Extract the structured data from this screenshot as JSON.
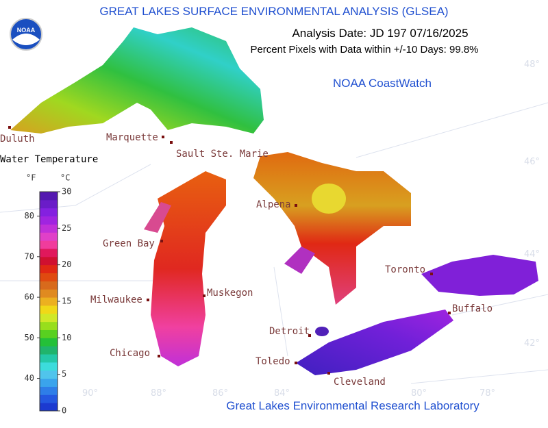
{
  "title": "GREAT LAKES SURFACE ENVIRONMENTAL ANALYSIS (GLSEA)",
  "analysis_date": "Analysis Date:  JD 197 07/16/2025",
  "percent_pixels": "Percent Pixels with Data within +/-10 Days:  99.8%",
  "source": "NOAA CoastWatch",
  "footer": "Great Lakes Environmental Research Laboratory",
  "logo_text": "NOAA",
  "legend": {
    "title": "Water Temperature",
    "f_label": "°F",
    "c_label": "°C",
    "flim": [
      32,
      86
    ],
    "fticks": [
      40,
      50,
      60,
      70,
      80
    ],
    "clim": [
      0,
      30
    ],
    "cticks": [
      0,
      5,
      10,
      15,
      20,
      25,
      30
    ],
    "colors": [
      "#1c3ad0",
      "#2458e0",
      "#2e7ee8",
      "#3aa4ec",
      "#50c4ec",
      "#3cdcdc",
      "#24c8a8",
      "#20b46c",
      "#24c038",
      "#58d020",
      "#98de1c",
      "#d0e828",
      "#f0d818",
      "#ecb020",
      "#e08a20",
      "#d86a1c",
      "#e04a10",
      "#e02814",
      "#d01030",
      "#e0185c",
      "#f03c9c",
      "#e040c8",
      "#c030d8",
      "#a024e0",
      "#8420e0",
      "#6a1cc8",
      "#5418b0"
    ]
  },
  "cities": [
    "Duluth",
    "Marquette",
    "Sault Ste. Marie",
    "Green Bay",
    "Alpena",
    "Milwaukee",
    "Muskegon",
    "Toronto",
    "Buffalo",
    "Detroit",
    "Chicago",
    "Toledo",
    "Cleveland"
  ],
  "latitudes": [
    "48°",
    "46°",
    "44°",
    "42°"
  ],
  "longitudes": [
    "90°",
    "88°",
    "86°",
    "84°",
    "80°",
    "78°"
  ]
}
